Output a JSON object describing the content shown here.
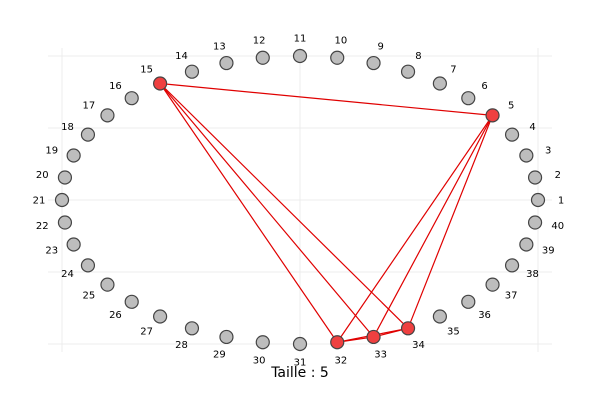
{
  "caption": "Taille : 5",
  "colors": {
    "node_default": "#bdbdbd",
    "node_selected": "#ef4040",
    "node_stroke": "#444444",
    "edge": "#e00000"
  },
  "chart_data": {
    "type": "circular-graph",
    "node_count": 40,
    "node_labels": [
      "1",
      "2",
      "3",
      "4",
      "5",
      "6",
      "7",
      "8",
      "9",
      "10",
      "11",
      "12",
      "13",
      "14",
      "15",
      "16",
      "17",
      "18",
      "19",
      "20",
      "21",
      "22",
      "23",
      "24",
      "25",
      "26",
      "27",
      "28",
      "29",
      "30",
      "31",
      "32",
      "33",
      "34",
      "35",
      "36",
      "37",
      "38",
      "39",
      "40"
    ],
    "selected_nodes": [
      5,
      15,
      32,
      33,
      34
    ],
    "edges": [
      [
        15,
        5
      ],
      [
        15,
        32
      ],
      [
        15,
        33
      ],
      [
        15,
        34
      ],
      [
        5,
        32
      ],
      [
        5,
        33
      ],
      [
        5,
        34
      ],
      [
        32,
        33
      ],
      [
        33,
        34
      ],
      [
        32,
        34
      ]
    ],
    "grid": true
  }
}
